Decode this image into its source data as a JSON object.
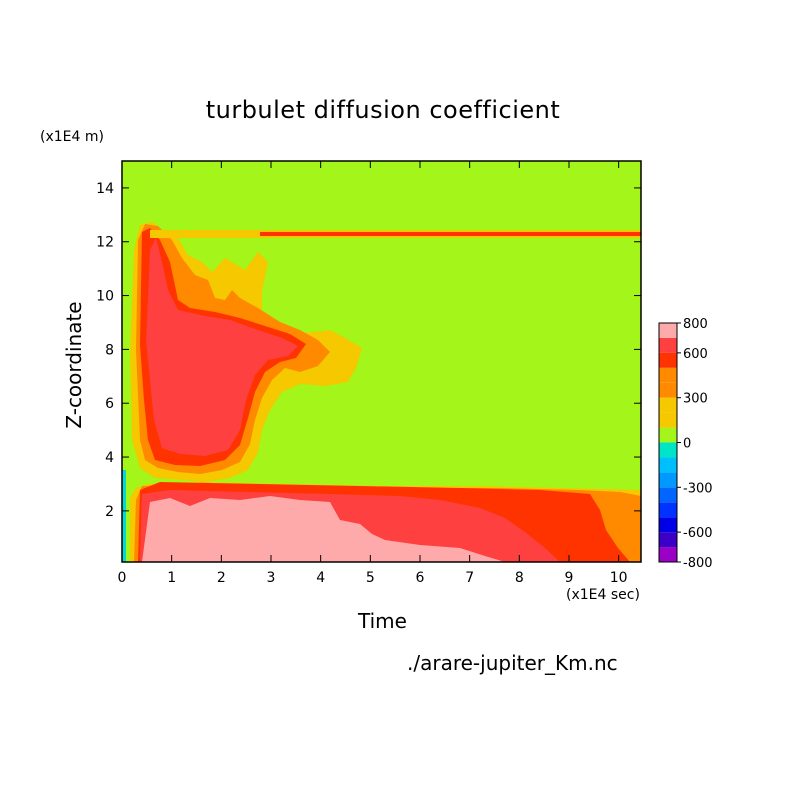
{
  "chart_data": {
    "type": "heatmap",
    "title": "turbulet diffusion coefficient",
    "xlabel": "Time",
    "ylabel": "Z-coordinate",
    "x_unit": "(x1E4 sec)",
    "y_unit": "(x1E4 m)",
    "xlim": [
      0,
      10.45
    ],
    "ylim": [
      0.1,
      15
    ],
    "x_ticks": [
      "0",
      "1",
      "2",
      "3",
      "4",
      "5",
      "6",
      "7",
      "8",
      "9",
      "10"
    ],
    "y_ticks": [
      "2",
      "4",
      "6",
      "8",
      "10",
      "12",
      "14"
    ],
    "colorbar": {
      "labels": [
        "800",
        "600",
        "300",
        "0",
        "-300",
        "-600",
        "-800"
      ],
      "levels": [
        -800,
        -700,
        -600,
        -500,
        -400,
        -300,
        -200,
        -100,
        0,
        100,
        200,
        300,
        400,
        500,
        600,
        700,
        800
      ],
      "colors": [
        "#9b00c6",
        "#3b00c8",
        "#0000e6",
        "#0033ff",
        "#0066ff",
        "#0099ff",
        "#00bfff",
        "#00e5c8",
        "#a4f51a",
        "#f5c800",
        "#f5c800",
        "#ff8a00",
        "#ff8a00",
        "#ff3300",
        "#ff4040",
        "#ffaaaa"
      ]
    },
    "regions": [
      {
        "level": "0 to 300 (background)",
        "x": [
          0,
          10.45
        ],
        "y": [
          0.1,
          15
        ]
      },
      {
        "level": "300 to 500 (upper plume)",
        "x": [
          0.35,
          4.9
        ],
        "y": [
          3.0,
          12.6
        ]
      },
      {
        "level": "500 to 700 (upper plume core)",
        "x": [
          0.4,
          3.7
        ],
        "y": [
          3.5,
          12.5
        ]
      },
      {
        "level": "500 to 700 (thin layer)",
        "x": [
          0.4,
          10.45
        ],
        "y": [
          12.1,
          12.3
        ]
      },
      {
        "level": "300 to 500 (lower layer)",
        "x": [
          0.3,
          10.45
        ],
        "y": [
          0.1,
          3.2
        ]
      },
      {
        "level": "500 to 700 (lower layer)",
        "x": [
          0.5,
          10.2
        ],
        "y": [
          0.1,
          3.1
        ]
      },
      {
        "level": "700 to 800 (lower core)",
        "x": [
          0.6,
          7.2
        ],
        "y": [
          0.1,
          2.4
        ]
      }
    ]
  },
  "source_label": "./arare-jupiter_Km.nc"
}
